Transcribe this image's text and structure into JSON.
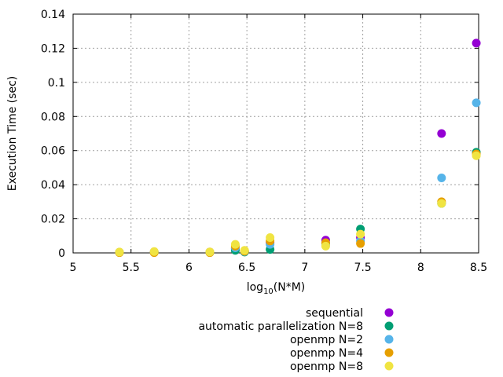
{
  "chart_data": {
    "type": "scatter",
    "xlabel_base": "log",
    "xlabel_sub": "10",
    "xlabel_rest": "(N*M)",
    "ylabel": "Execution Time (sec)",
    "xlim": [
      5,
      8.5
    ],
    "ylim": [
      0,
      0.14
    ],
    "xticks": [
      "5",
      "5.5",
      "6",
      "6.5",
      "7",
      "7.5",
      "8",
      "8.5"
    ],
    "yticks": [
      "0",
      "0.02",
      "0.04",
      "0.06",
      "0.08",
      "0.1",
      "0.12",
      "0.14"
    ],
    "grid": true,
    "legend_position": "bottom-right-outside",
    "series": [
      {
        "name": "sequential",
        "color": "#9400d3",
        "points": [
          [
            5.4,
            0.0004
          ],
          [
            5.7,
            0.0006
          ],
          [
            6.18,
            0.0005
          ],
          [
            6.4,
            0.0025
          ],
          [
            6.48,
            0.001
          ],
          [
            6.7,
            0.006
          ],
          [
            7.18,
            0.0075
          ],
          [
            7.48,
            0.009
          ],
          [
            8.18,
            0.07
          ],
          [
            8.48,
            0.123
          ]
        ]
      },
      {
        "name": "automatic parallelization N=8",
        "color": "#009e73",
        "points": [
          [
            5.4,
            0.0003
          ],
          [
            5.7,
            0.0003
          ],
          [
            6.18,
            0.0003
          ],
          [
            6.4,
            0.0015
          ],
          [
            6.48,
            0.0005
          ],
          [
            6.7,
            0.002
          ],
          [
            7.18,
            0.0055
          ],
          [
            7.48,
            0.014
          ],
          [
            8.18,
            0.029
          ],
          [
            8.48,
            0.059
          ]
        ]
      },
      {
        "name": "openmp N=2",
        "color": "#56b4e9",
        "points": [
          [
            5.4,
            0.0004
          ],
          [
            5.7,
            0.0005
          ],
          [
            6.18,
            0.0004
          ],
          [
            6.4,
            0.003
          ],
          [
            6.48,
            0.0008
          ],
          [
            6.7,
            0.005
          ],
          [
            7.18,
            0.0045
          ],
          [
            7.48,
            0.007
          ],
          [
            8.18,
            0.044
          ],
          [
            8.48,
            0.088
          ]
        ]
      },
      {
        "name": "openmp N=4",
        "color": "#e69f00",
        "points": [
          [
            5.4,
            0.0002
          ],
          [
            5.7,
            0.0002
          ],
          [
            6.18,
            0.0002
          ],
          [
            6.4,
            0.004
          ],
          [
            6.48,
            0.001
          ],
          [
            6.7,
            0.007
          ],
          [
            7.18,
            0.006
          ],
          [
            7.48,
            0.0055
          ],
          [
            8.18,
            0.03
          ],
          [
            8.48,
            0.058
          ]
        ]
      },
      {
        "name": "openmp N=8",
        "color": "#f0e442",
        "points": [
          [
            5.4,
            0.0005
          ],
          [
            5.7,
            0.0008
          ],
          [
            6.18,
            0.0006
          ],
          [
            6.4,
            0.005
          ],
          [
            6.48,
            0.0015
          ],
          [
            6.7,
            0.009
          ],
          [
            7.18,
            0.004
          ],
          [
            7.48,
            0.011
          ],
          [
            8.18,
            0.029
          ],
          [
            8.48,
            0.057
          ]
        ]
      }
    ]
  }
}
